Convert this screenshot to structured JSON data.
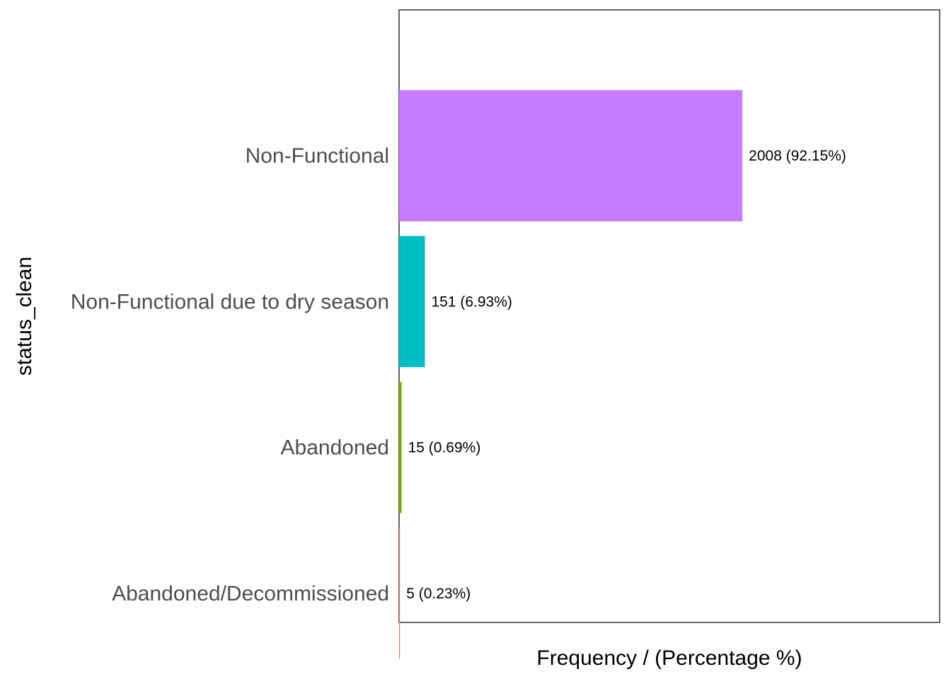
{
  "chart_data": {
    "type": "bar",
    "orientation": "horizontal",
    "categories": [
      "Non-Functional",
      "Non-Functional due to dry season",
      "Abandoned",
      "Abandoned/Decommissioned"
    ],
    "values": [
      2008,
      151,
      15,
      5
    ],
    "percentages": [
      92.15,
      6.93,
      0.69,
      0.23
    ],
    "data_labels": [
      "2008 (92.15%)",
      "151 (6.93%)",
      "15 (0.69%)",
      "5 (0.23%)"
    ],
    "colors": [
      "#c77cff",
      "#00bfc4",
      "#7cae00",
      "#f8766d"
    ],
    "xlabel": "Frequency / (Percentage %)",
    "ylabel": "status_clean",
    "xlim": [
      0,
      3162
    ],
    "x_ticks_shown": false,
    "grid": false,
    "legend": "none"
  }
}
